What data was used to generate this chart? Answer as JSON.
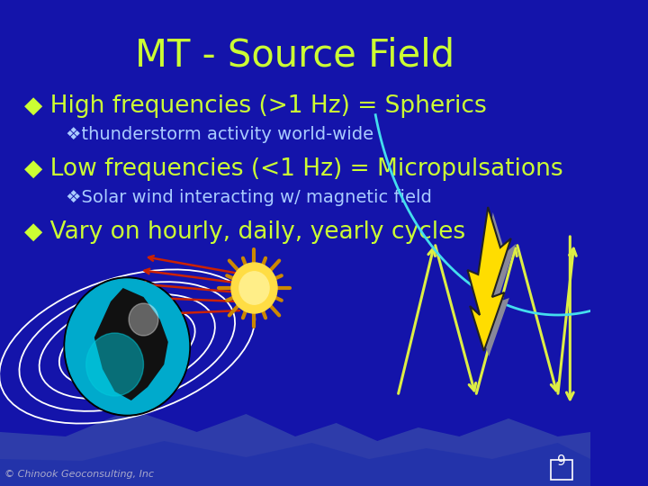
{
  "title": "MT - Source Field",
  "title_color": "#ccff33",
  "title_fontsize": 30,
  "bg_color": "#1414aa",
  "bullet_color": "#ccff33",
  "bullet_char": "◆",
  "sub_bullet_char": "❖",
  "bullet1": "High frequencies (>1 Hz) = Spherics",
  "sub1": "thunderstorm activity world-wide",
  "bullet2": "Low frequencies (<1 Hz) = Micropulsations",
  "sub2": "Solar wind interacting w/ magnetic field",
  "bullet3": "Vary on hourly, daily, yearly cycles",
  "text_color": "#ccff33",
  "sub_text_color": "#aaccff",
  "footer": "© Chinook Geoconsulting, Inc",
  "page_num": "9",
  "font_size_bullet": 19,
  "font_size_sub": 14
}
